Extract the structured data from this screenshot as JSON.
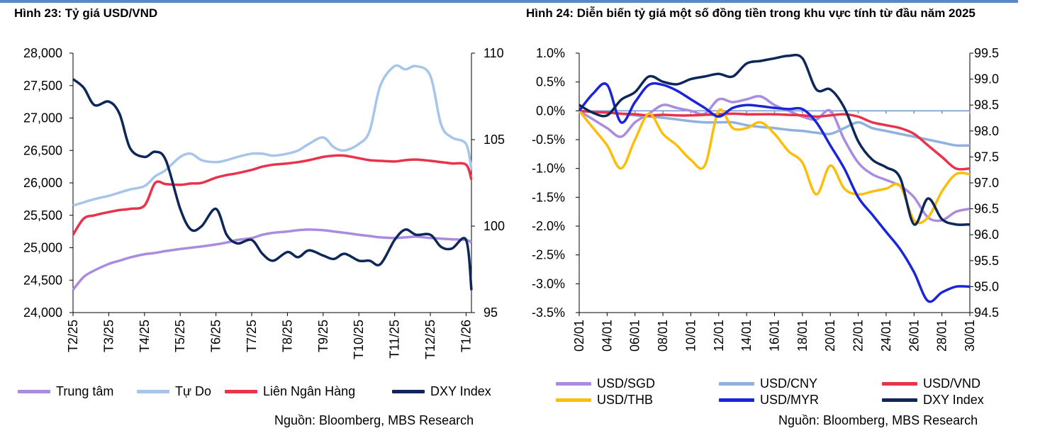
{
  "charts": {
    "left": {
      "title": "Hình 23: Tỷ giá USD/VND",
      "source": "Nguồn: Bloomberg, MBS Research"
    },
    "right": {
      "title": "Hình 24: Diễn biến tỷ giá một số đồng tiền trong khu vực tính từ đầu năm 2025",
      "source": "Nguồn: Bloomberg, MBS Research"
    }
  },
  "chart_data": [
    {
      "type": "line",
      "title": "Hình 23: Tỷ giá USD/VND",
      "x_ticks": [
        "T2/25",
        "T3/25",
        "T4/25",
        "T5/25",
        "T6/25",
        "T7/25",
        "T8/25",
        "T9/25",
        "T10/25",
        "T11/25",
        "T12/25",
        "T1/26"
      ],
      "x": [
        0,
        0.3,
        0.6,
        1,
        1.3,
        1.6,
        2,
        2.3,
        2.6,
        3,
        3.3,
        3.6,
        4,
        4.3,
        4.6,
        5,
        5.3,
        5.6,
        6,
        6.3,
        6.6,
        7,
        7.3,
        7.6,
        8,
        8.3,
        8.6,
        9,
        9.3,
        9.6,
        10,
        10.3,
        10.6,
        11,
        11.15
      ],
      "y_left": {
        "min": 24000,
        "max": 28000,
        "ticks": [
          24000,
          24500,
          25000,
          25500,
          26000,
          26500,
          27000,
          27500,
          28000
        ]
      },
      "y_right": {
        "min": 95,
        "max": 110,
        "ticks": [
          95,
          100,
          105,
          110
        ]
      },
      "series": [
        {
          "name": "Trung tâm",
          "color": "#a98ce0",
          "axis": "left",
          "values": [
            24350,
            24550,
            24650,
            24750,
            24800,
            24850,
            24900,
            24920,
            24950,
            24980,
            25000,
            25020,
            25050,
            25080,
            25120,
            25150,
            25200,
            25230,
            25250,
            25270,
            25280,
            25270,
            25250,
            25230,
            25200,
            25180,
            25160,
            25150,
            25160,
            25170,
            25150,
            25140,
            25130,
            25120,
            25080
          ]
        },
        {
          "name": "Tự Do",
          "color": "#a6c5ea",
          "axis": "left",
          "values": [
            25650,
            25700,
            25750,
            25800,
            25850,
            25900,
            25950,
            26100,
            26200,
            26400,
            26450,
            26350,
            26320,
            26350,
            26400,
            26450,
            26450,
            26420,
            26450,
            26500,
            26600,
            26700,
            26550,
            26500,
            26600,
            26800,
            27500,
            27800,
            27750,
            27800,
            27650,
            26900,
            26700,
            26600,
            26200
          ]
        },
        {
          "name": "Liên Ngân Hàng",
          "color": "#e8334a",
          "axis": "left",
          "values": [
            25200,
            25450,
            25500,
            25550,
            25580,
            25600,
            25650,
            26000,
            25980,
            25970,
            25990,
            26000,
            26080,
            26120,
            26150,
            26200,
            26250,
            26280,
            26300,
            26320,
            26350,
            26400,
            26420,
            26420,
            26380,
            26350,
            26340,
            26330,
            26350,
            26360,
            26340,
            26320,
            26300,
            26280,
            26050
          ]
        },
        {
          "name": "DXY Index",
          "color": "#0d2758",
          "axis": "right",
          "values": [
            108.5,
            108,
            107,
            107.2,
            106.5,
            104.5,
            104,
            104.3,
            103.8,
            101,
            99.8,
            100,
            101,
            99.5,
            99,
            99.2,
            98.4,
            98,
            98.5,
            98.2,
            98.6,
            98.3,
            98.1,
            98.4,
            98,
            98,
            97.8,
            99.2,
            99.8,
            99.5,
            99.5,
            98.8,
            98.7,
            99.2,
            96.3
          ]
        }
      ],
      "legend": [
        "Trung tâm",
        "Tự Do",
        "Liên Ngân Hàng",
        "DXY Index"
      ]
    },
    {
      "type": "line",
      "title": "Hình 24: Diễn biến tỷ giá một số đồng tiền trong khu vực tính từ đầu năm 2025",
      "x_ticks": [
        "02/01",
        "04/01",
        "06/01",
        "08/01",
        "10/01",
        "12/01",
        "14/01",
        "16/01",
        "18/01",
        "20/01",
        "22/01",
        "24/01",
        "26/01",
        "28/01",
        "30/01"
      ],
      "x": [
        2,
        3,
        4,
        5,
        6,
        7,
        8,
        9,
        10,
        11,
        12,
        13,
        14,
        15,
        16,
        17,
        18,
        19,
        20,
        21,
        22,
        23,
        24,
        25,
        26,
        27,
        28,
        29,
        30
      ],
      "y_left": {
        "min": -3.5,
        "max": 1.0,
        "unit": "%",
        "ticks": [
          -3.5,
          -3.0,
          -2.5,
          -2.0,
          -1.5,
          -1.0,
          -0.5,
          0.0,
          0.5,
          1.0
        ]
      },
      "y_right": {
        "min": 94.5,
        "max": 99.5,
        "ticks": [
          94.5,
          95.0,
          95.5,
          96.0,
          96.5,
          97.0,
          97.5,
          98.0,
          98.5,
          99.0,
          99.5
        ]
      },
      "series": [
        {
          "name": "USD/SGD",
          "color": "#a98ce0",
          "axis": "left",
          "values": [
            0.0,
            -0.15,
            -0.3,
            -0.45,
            -0.2,
            -0.05,
            0.1,
            0.05,
            0.0,
            -0.05,
            0.2,
            0.15,
            0.2,
            0.25,
            0.1,
            0.0,
            -0.1,
            -0.15,
            0.0,
            -0.5,
            -0.9,
            -1.1,
            -1.2,
            -1.3,
            -1.5,
            -1.85,
            -1.9,
            -1.75,
            -1.7
          ]
        },
        {
          "name": "USD/CNY",
          "color": "#8eb1e0",
          "axis": "left",
          "values": [
            0.0,
            -0.02,
            -0.03,
            -0.05,
            -0.08,
            -0.1,
            -0.12,
            -0.15,
            -0.18,
            -0.2,
            -0.2,
            -0.2,
            -0.25,
            -0.28,
            -0.3,
            -0.33,
            -0.35,
            -0.38,
            -0.4,
            -0.3,
            -0.2,
            -0.3,
            -0.35,
            -0.4,
            -0.45,
            -0.5,
            -0.55,
            -0.6,
            -0.6
          ]
        },
        {
          "name": "USD/VND",
          "color": "#e8334a",
          "axis": "left",
          "values": [
            0.0,
            -0.02,
            -0.03,
            -0.05,
            -0.06,
            -0.08,
            -0.07,
            -0.08,
            -0.08,
            -0.07,
            -0.06,
            -0.05,
            -0.06,
            -0.06,
            -0.06,
            -0.07,
            -0.08,
            -0.1,
            -0.08,
            -0.06,
            -0.1,
            -0.2,
            -0.25,
            -0.3,
            -0.4,
            -0.6,
            -0.8,
            -1.0,
            -1.0
          ]
        },
        {
          "name": "USD/THB",
          "color": "#fbbe0a",
          "axis": "left",
          "values": [
            0.0,
            -0.3,
            -0.6,
            -1.0,
            -0.5,
            -0.05,
            -0.4,
            -0.6,
            -0.85,
            -0.95,
            0.0,
            -0.3,
            -0.3,
            -0.2,
            -0.4,
            -0.7,
            -0.9,
            -1.45,
            -0.95,
            -1.35,
            -1.45,
            -1.4,
            -1.35,
            -1.3,
            -1.9,
            -1.85,
            -1.4,
            -1.1,
            -1.1
          ]
        },
        {
          "name": "USD/MYR",
          "color": "#1a24d8",
          "axis": "left",
          "values": [
            0.0,
            0.3,
            0.45,
            -0.2,
            0.15,
            0.45,
            0.45,
            0.35,
            0.2,
            0.05,
            -0.1,
            0.05,
            0.1,
            0.08,
            0.05,
            0.03,
            0.03,
            -0.2,
            -0.6,
            -1.0,
            -1.5,
            -1.8,
            -2.1,
            -2.4,
            -2.8,
            -3.3,
            -3.15,
            -3.05,
            -3.05
          ]
        },
        {
          "name": "DXY Index",
          "color": "#0d2758",
          "axis": "right",
          "values": [
            98.5,
            98.35,
            98.3,
            98.6,
            98.75,
            99.05,
            98.95,
            98.9,
            99.0,
            99.05,
            99.1,
            99.05,
            99.3,
            99.35,
            99.4,
            99.45,
            99.4,
            98.8,
            98.8,
            98.45,
            97.8,
            97.45,
            97.3,
            97.1,
            96.2,
            96.7,
            96.3,
            96.2,
            96.2
          ]
        }
      ],
      "legend": [
        "USD/SGD",
        "USD/CNY",
        "USD/VND",
        "USD/THB",
        "USD/MYR",
        "DXY Index"
      ]
    }
  ]
}
